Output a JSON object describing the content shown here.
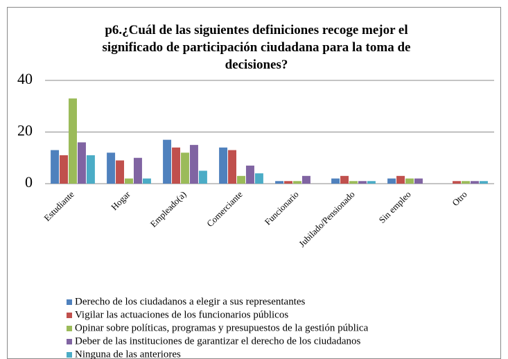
{
  "chart_data": {
    "type": "bar",
    "title": "p6.¿Cuál de las siguientes definiciones recoge mejor el significado de participación ciudadana para la toma de decisiones?",
    "categories": [
      "Estudiante",
      "Hogar",
      "Empleado(a)",
      "Comerciante",
      "Funcionario",
      "Jubilado/Pensionado",
      "Sin empleo",
      "Otro"
    ],
    "series": [
      {
        "name": "Derecho de los ciudadanos a elegir a sus representantes",
        "color": "#4f81bd",
        "values": [
          13,
          12,
          17,
          14,
          1,
          2,
          2,
          0
        ]
      },
      {
        "name": "Vigilar las actuaciones de los funcionarios públicos",
        "color": "#c0504d",
        "values": [
          11,
          9,
          14,
          13,
          1,
          3,
          3,
          1
        ]
      },
      {
        "name": "Opinar sobre políticas, programas y presupuestos de la gestión pública",
        "color": "#9bbb59",
        "values": [
          33,
          2,
          12,
          3,
          1,
          1,
          2,
          1
        ]
      },
      {
        "name": "Deber de las instituciones de garantizar el derecho de los ciudadanos",
        "color": "#8064a2",
        "values": [
          16,
          10,
          15,
          7,
          3,
          1,
          2,
          1
        ]
      },
      {
        "name": "Ninguna de las anteriores",
        "color": "#4bacc6",
        "values": [
          11,
          2,
          5,
          4,
          0,
          1,
          0,
          1
        ]
      }
    ],
    "ylim": [
      0,
      40
    ],
    "yticks": [
      0,
      20,
      40
    ],
    "grid": true,
    "legend": "bottom"
  }
}
